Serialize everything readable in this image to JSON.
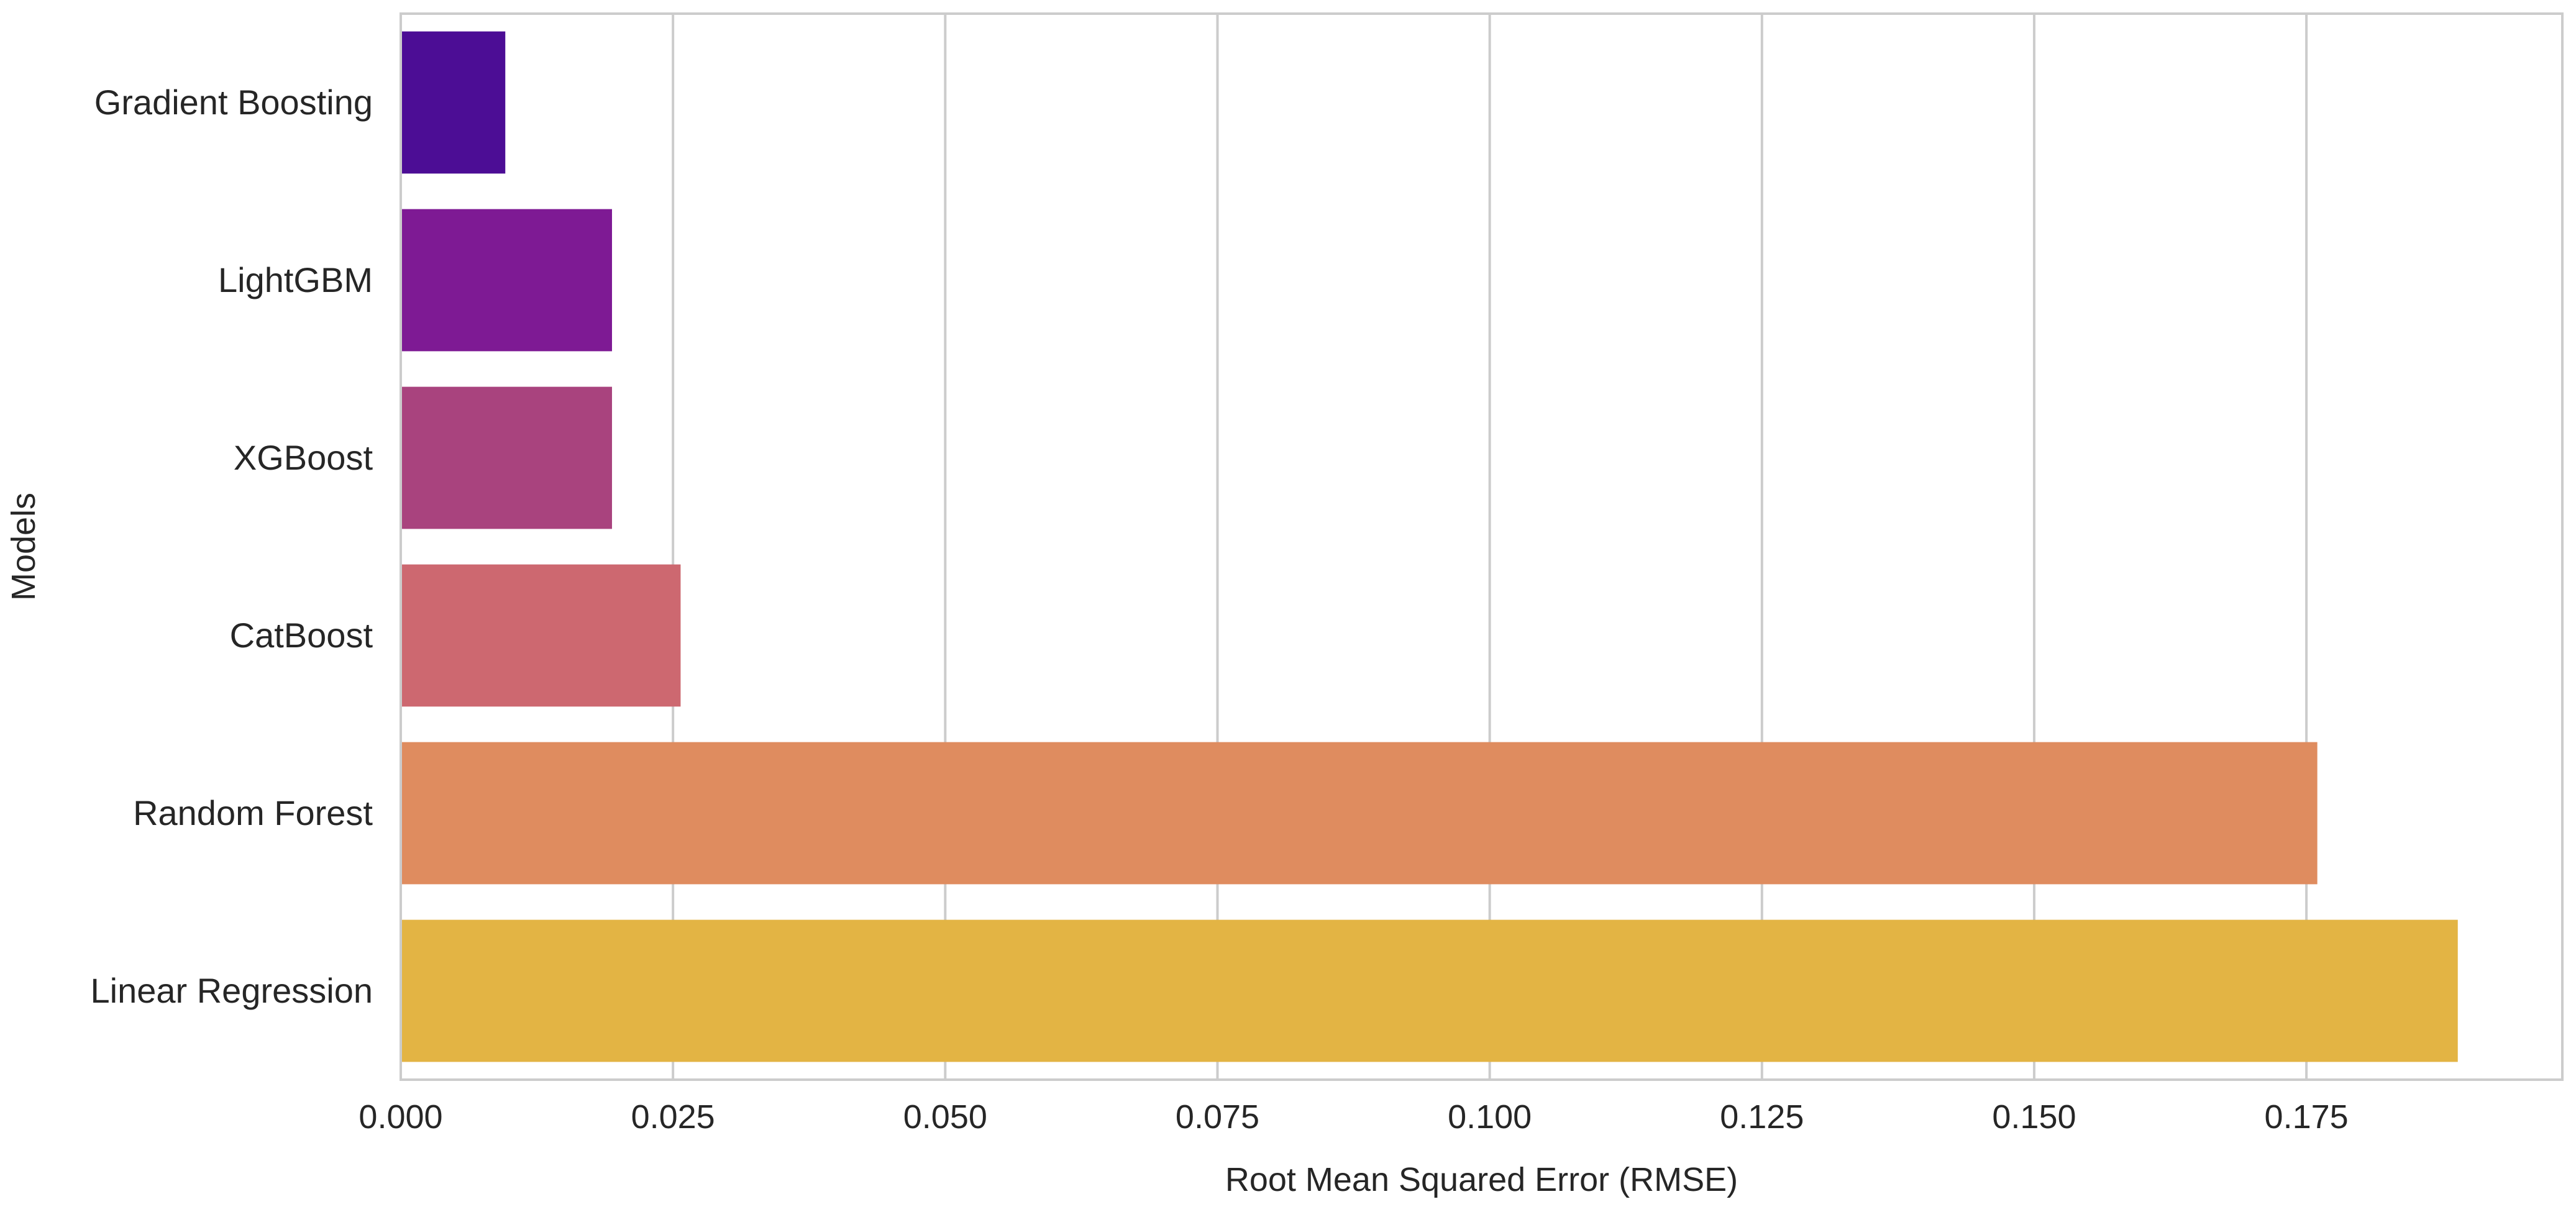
{
  "chart_data": {
    "type": "bar",
    "orientation": "horizontal",
    "categories": [
      "Gradient Boosting",
      "LightGBM",
      "XGBoost",
      "CatBoost",
      "Random Forest",
      "Linear Regression"
    ],
    "values": [
      0.0096,
      0.0194,
      0.0194,
      0.0257,
      0.176,
      0.1889
    ],
    "colors": [
      "#4c0d95",
      "#7e1a94",
      "#a9437e",
      "#cd6870",
      "#df8c5f",
      "#e3b444"
    ],
    "title": "",
    "xlabel": "Root Mean Squared Error (RMSE)",
    "ylabel": "Models",
    "xlim": [
      0.0,
      0.1985
    ],
    "xticks": [
      0.0,
      0.025,
      0.05,
      0.075,
      0.1,
      0.125,
      0.15,
      0.175
    ],
    "xtick_labels": [
      "0.000",
      "0.025",
      "0.050",
      "0.075",
      "0.100",
      "0.125",
      "0.150",
      "0.175"
    ],
    "grid": "vertical",
    "grid_color": "#cccccc",
    "spine_color": "#cccccc",
    "legend": "none"
  }
}
